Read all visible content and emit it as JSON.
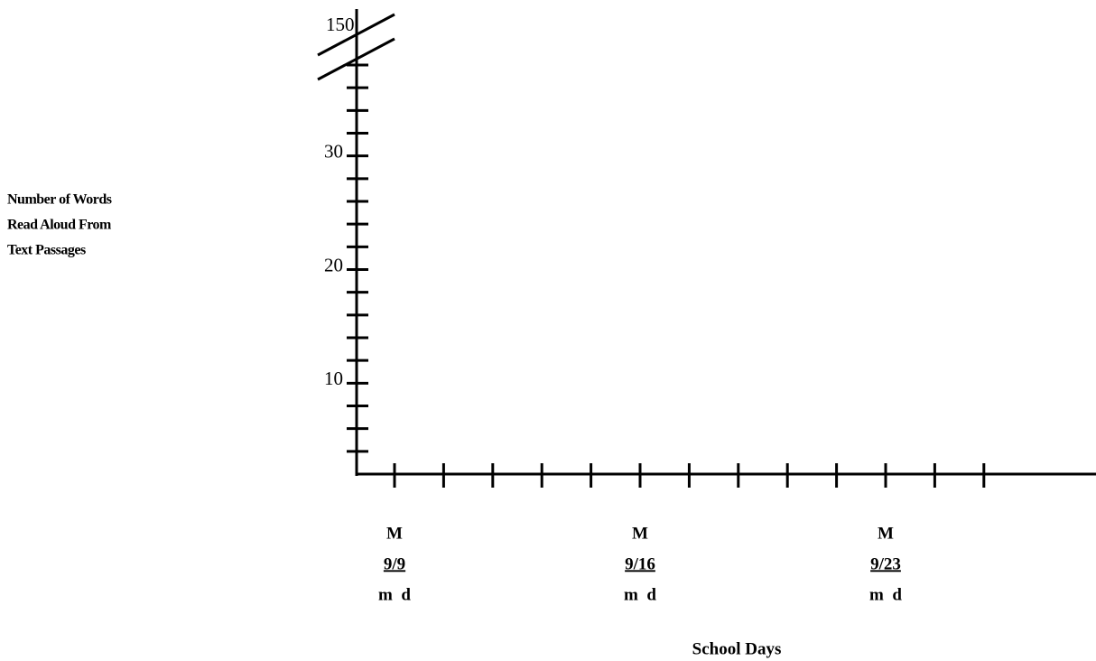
{
  "chart_data": {
    "type": "line",
    "ylabel": [
      "Number of Words",
      "Read Aloud  From",
      "Text  Passages"
    ],
    "xlabel": "School Days",
    "ylim": [
      2,
      38
    ],
    "yticks": [
      10,
      20,
      30
    ],
    "yminorticks": [
      4,
      6,
      8,
      12,
      14,
      16,
      18,
      22,
      24,
      26,
      28,
      32,
      34,
      36,
      38
    ],
    "ybreak_label": 150,
    "categories": [
      "9/9",
      null,
      null,
      null,
      null,
      "9/16",
      null,
      null,
      null,
      null,
      "9/23",
      null,
      null
    ],
    "day_labels": [
      "M",
      null,
      null,
      null,
      null,
      "M",
      null,
      null,
      null,
      null,
      "M",
      null,
      null
    ],
    "date_format": "m  d"
  }
}
